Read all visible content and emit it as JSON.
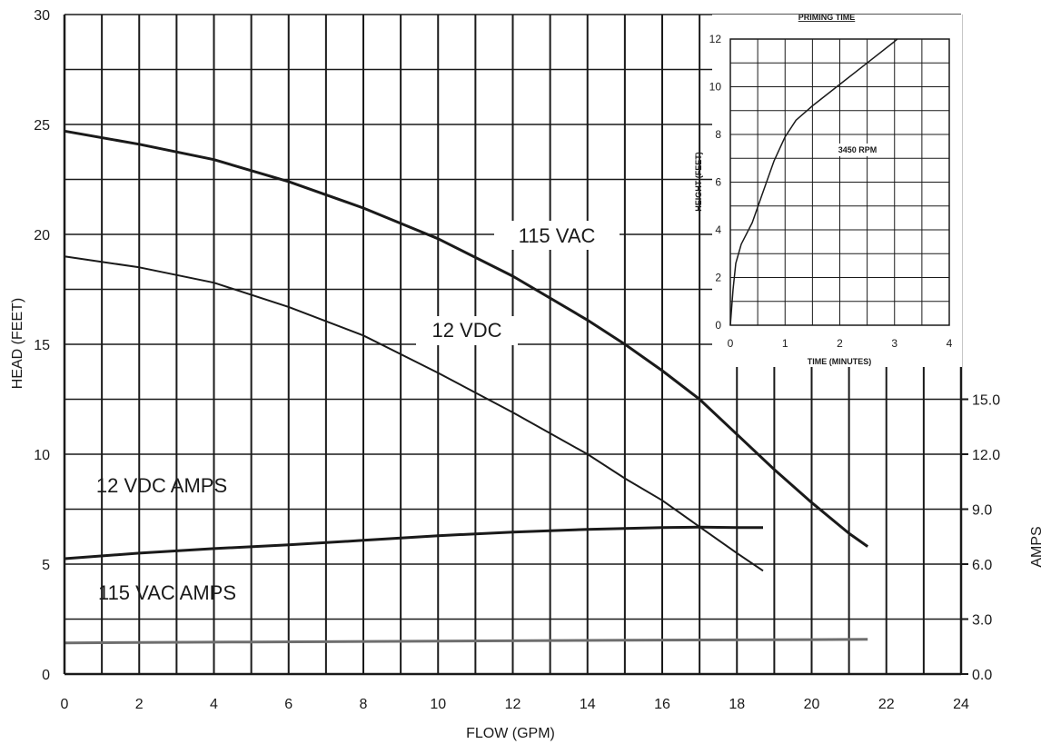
{
  "chart_data": [
    {
      "type": "line",
      "title": "",
      "xlabel": "FLOW (GPM)",
      "ylabel": "HEAD (FEET)",
      "y2label": "AMPS",
      "xlim": [
        0,
        24
      ],
      "ylim": [
        0,
        30
      ],
      "y2lim": [
        0,
        15
      ],
      "xticks": [
        "0",
        "2",
        "4",
        "6",
        "8",
        "10",
        "12",
        "14",
        "16",
        "18",
        "20",
        "22",
        "24"
      ],
      "yticks": [
        "0",
        "5",
        "10",
        "15",
        "20",
        "25",
        "30"
      ],
      "y2ticks": [
        "0.0",
        "3.0",
        "6.0",
        "9.0",
        "12.0",
        "15.0"
      ],
      "grid": true,
      "series": [
        {
          "name": "115 VAC",
          "axis": "head",
          "color": "#1a1a1a",
          "x": [
            0,
            2,
            4,
            6,
            8,
            10,
            12,
            14,
            15,
            16,
            17,
            18,
            19,
            20,
            21,
            21.5
          ],
          "y": [
            24.7,
            24.1,
            23.4,
            22.4,
            21.2,
            19.8,
            18.1,
            16.1,
            15.0,
            13.8,
            12.5,
            10.9,
            9.3,
            7.8,
            6.4,
            5.8
          ]
        },
        {
          "name": "12 VDC",
          "axis": "head",
          "color": "#1a1a1a",
          "x": [
            0,
            2,
            4,
            6,
            8,
            10,
            12,
            14,
            15,
            16,
            17,
            18,
            18.7
          ],
          "y": [
            19.0,
            18.5,
            17.8,
            16.7,
            15.4,
            13.7,
            11.9,
            10.0,
            8.9,
            7.9,
            6.7,
            5.5,
            4.7
          ]
        },
        {
          "name": "12 VDC AMPS",
          "axis": "amps",
          "color": "#1a1a1a",
          "x": [
            0,
            2,
            4,
            6,
            8,
            10,
            12,
            14,
            16,
            17,
            18,
            18.7
          ],
          "y": [
            6.3,
            6.6,
            6.85,
            7.05,
            7.3,
            7.55,
            7.75,
            7.9,
            8.0,
            8.02,
            8.0,
            8.0
          ]
        },
        {
          "name": "115 VAC AMPS",
          "axis": "amps",
          "color": "#6e6e6e",
          "x": [
            0,
            5,
            10,
            15,
            20,
            21.5
          ],
          "y": [
            1.7,
            1.75,
            1.8,
            1.85,
            1.88,
            1.9
          ]
        }
      ]
    },
    {
      "type": "line",
      "title": "PRIMING TIME",
      "xlabel": "TIME (MINUTES)",
      "ylabel": "HEIGHT (FEET)",
      "xlim": [
        0,
        4
      ],
      "ylim": [
        0,
        12
      ],
      "xticks": [
        "0",
        "1",
        "2",
        "3",
        "4"
      ],
      "yticks": [
        "0",
        "2",
        "4",
        "6",
        "8",
        "10",
        "12"
      ],
      "annotation": "3450 RPM",
      "series": [
        {
          "color": "#1a1a1a",
          "x": [
            0,
            0.05,
            0.1,
            0.2,
            0.4,
            0.6,
            0.8,
            1.0,
            1.2,
            1.5,
            2.0,
            2.5,
            3.0,
            3.05
          ],
          "y": [
            0,
            1.5,
            2.6,
            3.4,
            4.3,
            5.6,
            6.9,
            7.9,
            8.6,
            9.2,
            10.1,
            11.0,
            11.9,
            12.0
          ]
        }
      ]
    }
  ]
}
